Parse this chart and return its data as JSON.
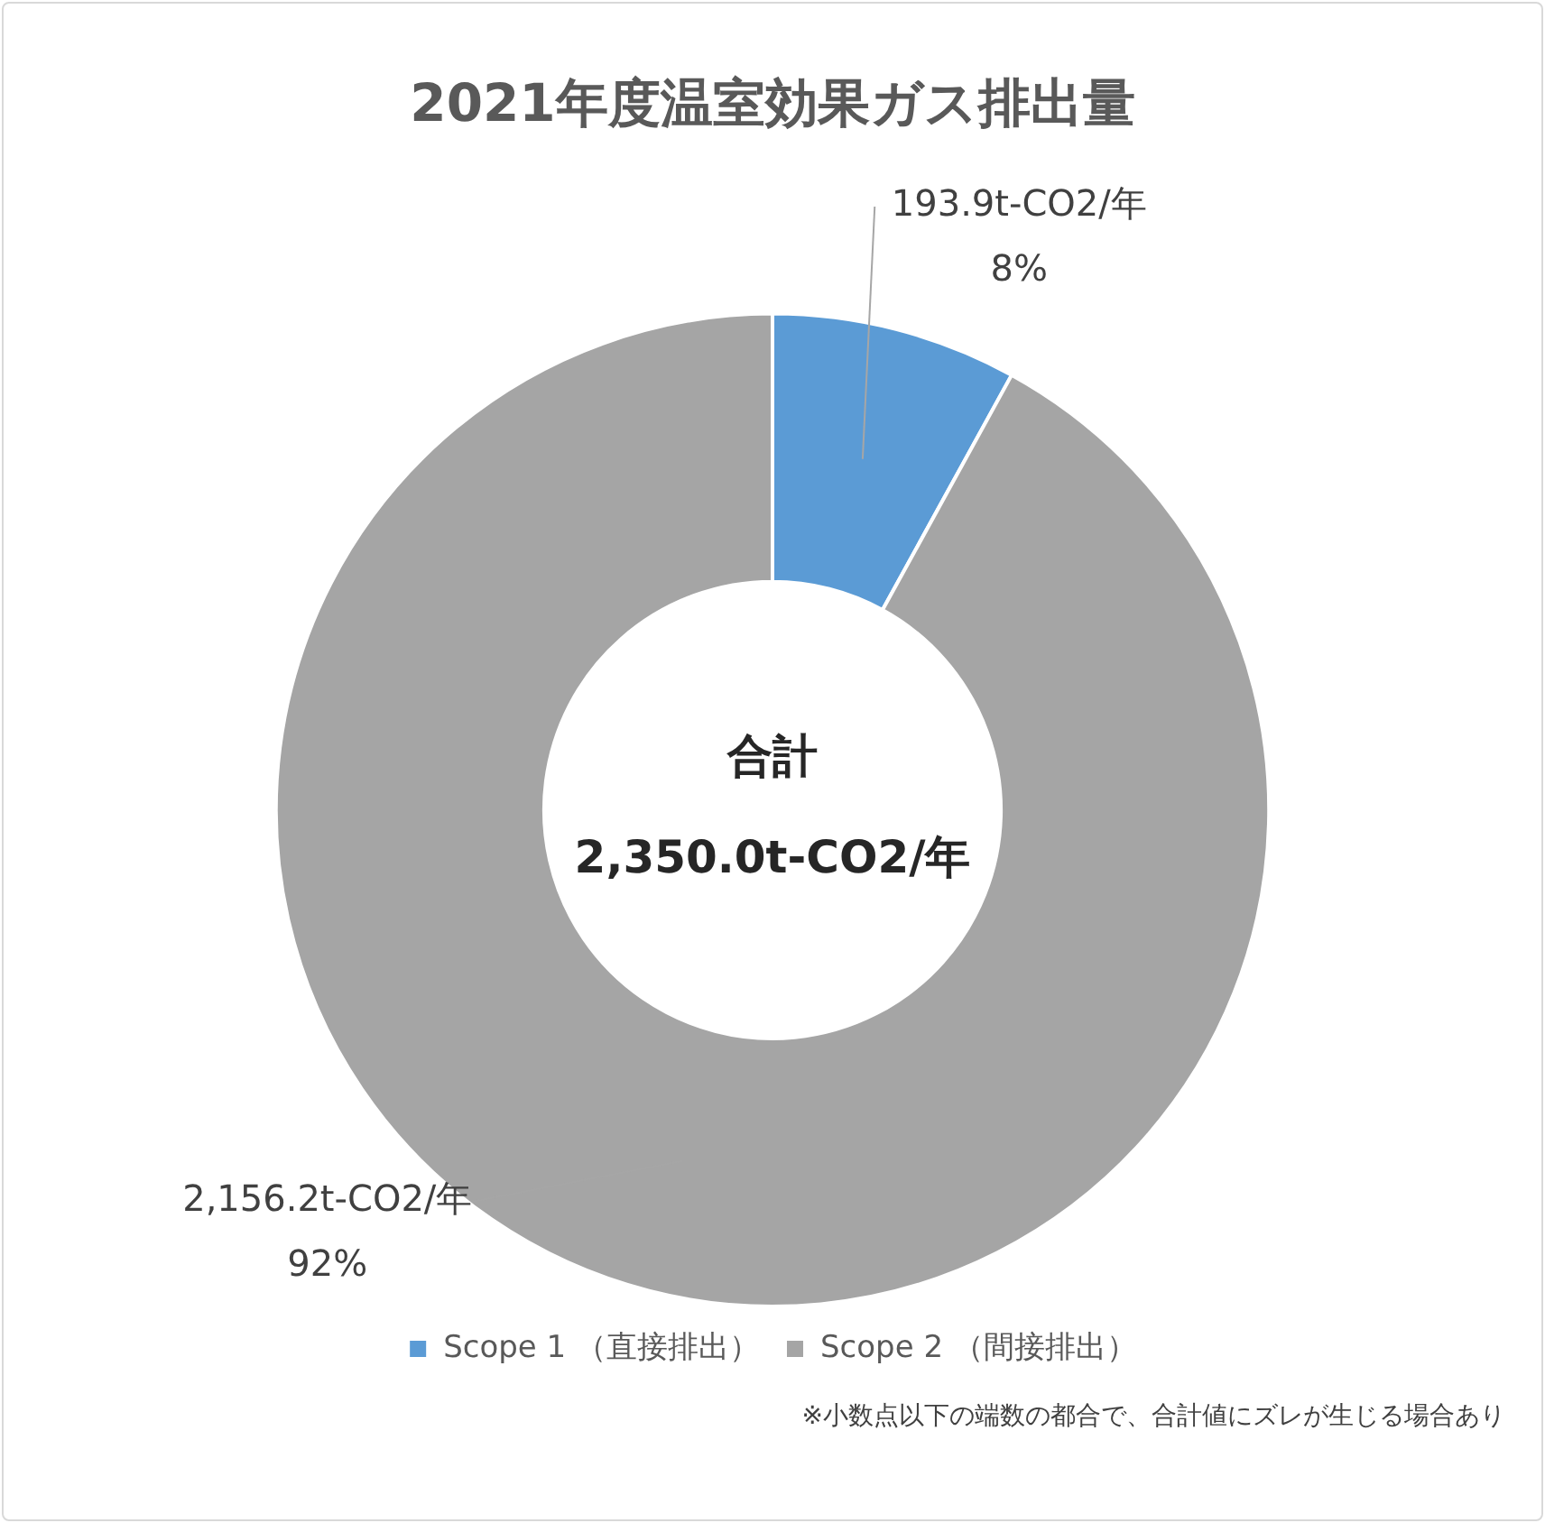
{
  "chart_data": {
    "type": "donut",
    "title": "2021年度温室効果ガス排出量",
    "categories": [
      "Scope 1 （直接排出）",
      "Scope 2 （間接排出）"
    ],
    "values": [
      8,
      92
    ],
    "colors": [
      "#5b9bd5",
      "#a5a5a5"
    ],
    "value_labels": [
      "8%",
      "92%"
    ],
    "legend": "bottom",
    "annotations": [
      "合計",
      "2,350.0t-CO2/年",
      {
        "text": "193.9t-CO2/年",
        "x": "Scope 1 （直接排出）"
      },
      {
        "text": "2,156.2t-CO2/年",
        "x": "Scope 2 （間接排出）"
      },
      "※小数点以下の端数の都合で、合計値にズレが生じる場合あり"
    ]
  }
}
